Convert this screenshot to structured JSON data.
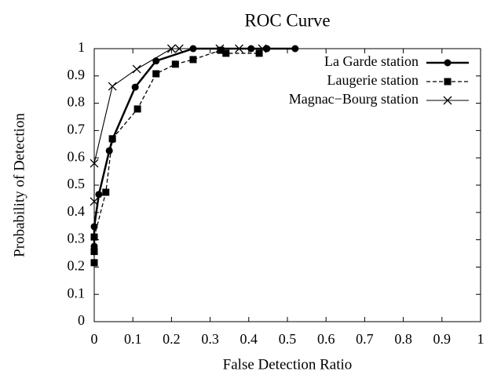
{
  "chart_data": {
    "type": "line",
    "title": "ROC Curve",
    "x_label": "False Detection Ratio",
    "y_label": "Probability of Detection",
    "xlim": [
      0,
      1
    ],
    "ylim": [
      0,
      1
    ],
    "xticks": [
      0,
      0.1,
      0.2,
      0.3,
      0.4,
      0.5,
      0.6,
      0.7,
      0.8,
      0.9,
      1
    ],
    "yticks": [
      0,
      0.1,
      0.2,
      0.3,
      0.4,
      0.5,
      0.6,
      0.7,
      0.8,
      0.9,
      1
    ],
    "legend": "upper right",
    "series": [
      {
        "name": "La Garde station",
        "color": "#000000",
        "marker": "circle",
        "line_style": "thick",
        "x": [
          0,
          0,
          0,
          0.012,
          0.039,
          0.047,
          0.106,
          0.16,
          0.256,
          0.406,
          0.447,
          0.52
        ],
        "values": [
          0.264,
          0.276,
          0.348,
          0.466,
          0.626,
          0.667,
          0.859,
          0.955,
          1,
          1,
          1,
          1
        ]
      },
      {
        "name": "Laugerie station",
        "color": "#000000",
        "marker": "square",
        "line_style": "dashed",
        "x": [
          0,
          0,
          0,
          0.03,
          0.047,
          0.112,
          0.16,
          0.21,
          0.256,
          0.327,
          0.341,
          0.427
        ],
        "values": [
          0.216,
          0.257,
          0.31,
          0.474,
          0.67,
          0.779,
          0.908,
          0.943,
          0.96,
          0.994,
          0.983,
          0.983
        ]
      },
      {
        "name": "Magnac−Bourg station",
        "color": "#000000",
        "marker": "x",
        "line_style": "thin",
        "x": [
          0,
          0,
          0.047,
          0.11,
          0.2,
          0.22,
          0.325,
          0.375,
          0.435
        ],
        "values": [
          0.44,
          0.58,
          0.862,
          0.925,
          1,
          1,
          1,
          1,
          1
        ]
      }
    ]
  }
}
